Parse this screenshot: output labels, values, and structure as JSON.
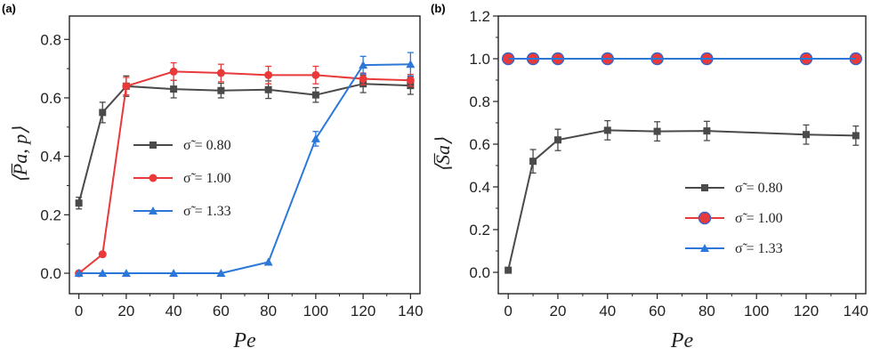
{
  "chart_data": [
    {
      "type": "line",
      "panel_label": "(a)",
      "xlabel": "Pe",
      "ylabel": "⟨P̅a, p⟩",
      "xlim": [
        -4,
        144
      ],
      "ylim": [
        -0.07,
        0.88
      ],
      "xticks": [
        "0",
        "20",
        "40",
        "60",
        "80",
        "100",
        "120",
        "140"
      ],
      "yticks": [
        "0.0",
        "0.2",
        "0.4",
        "0.6",
        "0.8"
      ],
      "legend_position": "center-left",
      "series": [
        {
          "name": "σ̃ = 0.80",
          "color": "#4a4a4a",
          "marker": "square",
          "x": [
            0,
            10,
            20,
            40,
            60,
            80,
            100,
            120,
            140
          ],
          "y": [
            0.24,
            0.55,
            0.64,
            0.63,
            0.625,
            0.628,
            0.61,
            0.648,
            0.642
          ],
          "err": [
            0.02,
            0.035,
            0.035,
            0.03,
            0.025,
            0.03,
            0.025,
            0.03,
            0.03
          ]
        },
        {
          "name": "σ̃ = 1.00",
          "color": "#e83a3a",
          "marker": "circle",
          "x": [
            0,
            10,
            20,
            40,
            60,
            80,
            100,
            120,
            140
          ],
          "y": [
            0.0,
            0.065,
            0.64,
            0.69,
            0.685,
            0.678,
            0.678,
            0.665,
            0.66
          ],
          "err": [
            0,
            0,
            0.03,
            0.03,
            0.03,
            0.03,
            0.03,
            0.02,
            0.02
          ]
        },
        {
          "name": "σ̃ = 1.33",
          "color": "#2b78d8",
          "marker": "triangle",
          "x": [
            0,
            10,
            20,
            40,
            60,
            80,
            100,
            120,
            140
          ],
          "y": [
            0.0,
            0.0,
            0.0,
            0.0,
            0.0,
            0.038,
            0.46,
            0.712,
            0.715
          ],
          "err": [
            0,
            0,
            0,
            0,
            0,
            0,
            0.025,
            0.03,
            0.04
          ]
        }
      ]
    },
    {
      "type": "line",
      "panel_label": "(b)",
      "xlabel": "Pe",
      "ylabel": "⟨S̅a⟩",
      "xlim": [
        -4,
        144
      ],
      "ylim": [
        -0.1,
        1.2
      ],
      "xticks": [
        "0",
        "20",
        "40",
        "60",
        "80",
        "100",
        "120",
        "140"
      ],
      "yticks": [
        "0.0",
        "0.2",
        "0.4",
        "0.6",
        "0.8",
        "1.0",
        "1.2"
      ],
      "legend_position": "lower-right",
      "series": [
        {
          "name": "σ̃ = 0.80",
          "color": "#4a4a4a",
          "marker": "square",
          "x": [
            0,
            10,
            20,
            40,
            60,
            80,
            120,
            140
          ],
          "y": [
            0.01,
            0.52,
            0.62,
            0.665,
            0.66,
            0.662,
            0.645,
            0.64
          ],
          "err": [
            0,
            0.055,
            0.05,
            0.045,
            0.045,
            0.045,
            0.045,
            0.045
          ]
        },
        {
          "name": "σ̃ = 1.00",
          "color": "#e83a3a",
          "marker": "circle",
          "x": [
            0,
            10,
            20,
            40,
            60,
            80,
            120,
            140
          ],
          "y": [
            1.0,
            1.0,
            1.0,
            1.0,
            1.0,
            1.0,
            1.0,
            1.0
          ],
          "err": [
            0,
            0,
            0,
            0,
            0,
            0,
            0,
            0
          ]
        },
        {
          "name": "σ̃ = 1.33",
          "color": "#2b78d8",
          "marker": "triangle",
          "x": [
            0,
            10,
            20,
            40,
            60,
            80,
            120,
            140
          ],
          "y": [
            1.0,
            1.0,
            1.0,
            1.0,
            1.0,
            1.0,
            1.0,
            1.0
          ],
          "err": [
            0,
            0,
            0,
            0,
            0,
            0,
            0,
            0
          ]
        }
      ]
    }
  ]
}
